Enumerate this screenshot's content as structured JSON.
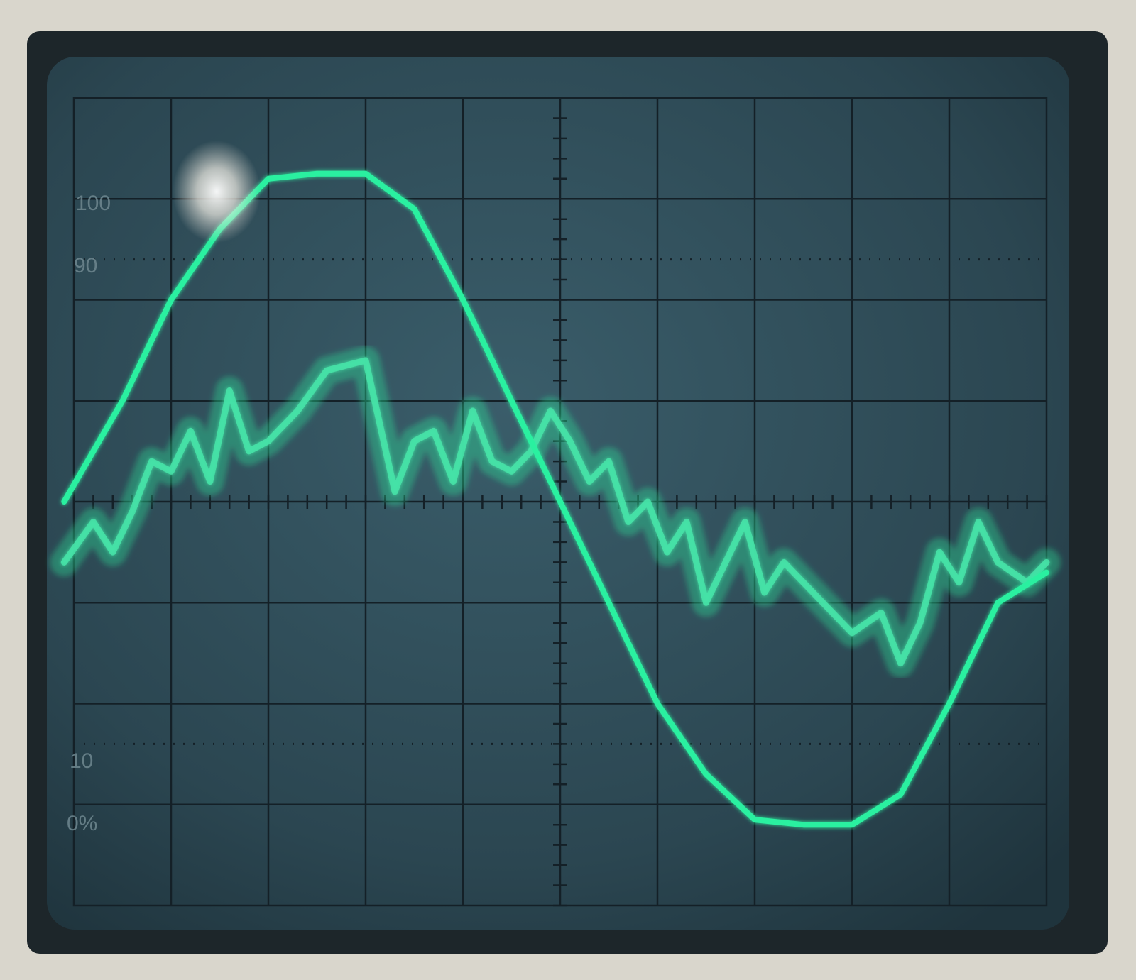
{
  "screen": {
    "bezel_color": "#d9d6cc",
    "frame_color": "#1d262a",
    "crt_color": "#2d4a56",
    "graticule_color": "#142027",
    "trace_color": "#2cf0a0"
  },
  "graticule": {
    "labels": {
      "label_100": "100",
      "label_90": "90",
      "label_10": "10",
      "label_0": "0%"
    }
  },
  "chart_data": {
    "type": "line",
    "x_range": [
      0,
      10
    ],
    "y_range": [
      -4,
      4
    ],
    "series": [
      {
        "x": [
          -0.1,
          0.5,
          1.0,
          1.5,
          2.0,
          2.5,
          3.0,
          3.5,
          4.0,
          4.5,
          5.0,
          5.5,
          6.0,
          6.5,
          7.0,
          7.5,
          8.0,
          8.5,
          9.0,
          9.5,
          10.0
        ],
        "y": [
          0.0,
          1.0,
          2.0,
          2.7,
          3.2,
          3.25,
          3.25,
          2.9,
          2.0,
          1.0,
          0.0,
          -1.0,
          -2.0,
          -2.7,
          -3.15,
          -3.2,
          -3.2,
          -2.9,
          -2.0,
          -1.0,
          -0.7
        ]
      },
      {
        "x": [
          -0.1,
          0.2,
          0.4,
          0.6,
          0.8,
          1.0,
          1.2,
          1.4,
          1.6,
          1.8,
          2.0,
          2.3,
          2.6,
          3.0,
          3.3,
          3.5,
          3.7,
          3.9,
          4.1,
          4.3,
          4.5,
          4.7,
          4.9,
          5.1,
          5.3,
          5.5,
          5.7,
          5.9,
          6.1,
          6.3,
          6.5,
          6.7,
          6.9,
          7.1,
          7.3,
          7.6,
          8.0,
          8.3,
          8.5,
          8.7,
          8.9,
          9.1,
          9.3,
          9.5,
          9.8,
          10.0
        ],
        "y": [
          -0.6,
          -0.2,
          -0.5,
          -0.1,
          0.4,
          0.3,
          0.7,
          0.2,
          1.1,
          0.5,
          0.6,
          0.9,
          1.3,
          1.4,
          0.1,
          0.6,
          0.7,
          0.2,
          0.9,
          0.4,
          0.3,
          0.5,
          0.9,
          0.6,
          0.2,
          0.4,
          -0.2,
          0.0,
          -0.5,
          -0.2,
          -1.0,
          -0.6,
          -0.2,
          -0.9,
          -0.6,
          -0.9,
          -1.3,
          -1.1,
          -1.6,
          -1.2,
          -0.5,
          -0.8,
          -0.2,
          -0.6,
          -0.8,
          -0.6
        ]
      }
    ]
  }
}
